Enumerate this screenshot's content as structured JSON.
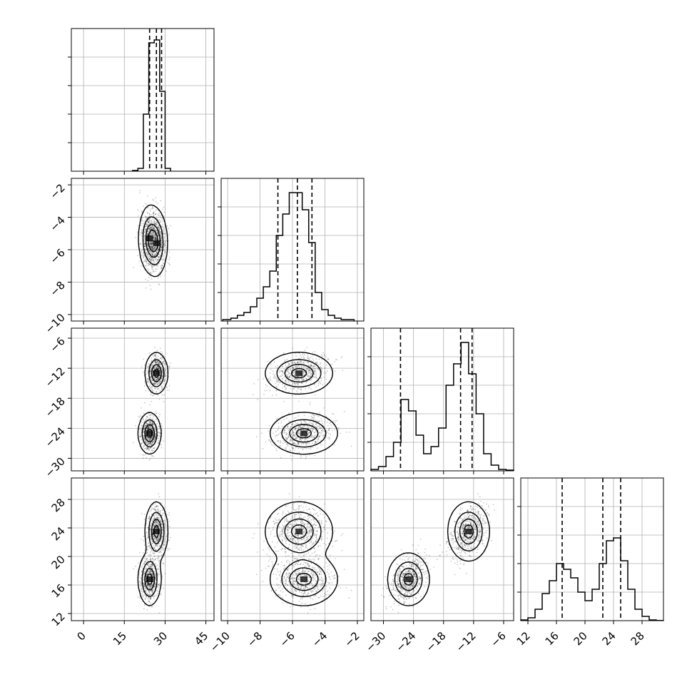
{
  "chart_data": {
    "type": "corner",
    "params": [
      {
        "ticks": [
          0,
          15,
          30,
          45
        ],
        "range": [
          -4.5,
          48
        ],
        "quantiles": [
          24.3,
          26.8,
          28.7
        ]
      },
      {
        "ticks": [
          -10,
          -8,
          -6,
          -4,
          -2
        ],
        "range": [
          -10.4,
          -1.6
        ],
        "quantiles": [
          -6.9,
          -5.7,
          -4.8
        ]
      },
      {
        "ticks": [
          -30,
          -24,
          -18,
          -12,
          -6
        ],
        "range": [
          -32.5,
          -4
        ],
        "quantiles": [
          -26.6,
          -14.6,
          -12.3
        ]
      },
      {
        "ticks": [
          12,
          16,
          20,
          24,
          28
        ],
        "range": [
          11,
          31
        ],
        "quantiles": [
          16.8,
          22.5,
          25.0
        ]
      }
    ],
    "diag_ytick_fractions": [
      0.2,
      0.4,
      0.6,
      0.8
    ],
    "histograms": [
      {
        "edges": [
          18,
          20,
          22,
          24,
          26,
          28,
          30,
          32
        ],
        "densities": [
          0.005,
          0.02,
          0.4,
          0.9,
          0.92,
          0.56,
          0.02
        ]
      },
      {
        "edges": [
          -10.3,
          -9.8,
          -9.4,
          -9.0,
          -8.6,
          -8.2,
          -7.8,
          -7.4,
          -7.0,
          -6.6,
          -6.2,
          -5.8,
          -5.4,
          -5.0,
          -4.6,
          -4.2,
          -3.8,
          -3.4,
          -3.0,
          -2.6,
          -2.2
        ],
        "densities": [
          0.01,
          0.02,
          0.04,
          0.06,
          0.1,
          0.16,
          0.24,
          0.35,
          0.6,
          0.75,
          0.9,
          0.9,
          0.78,
          0.55,
          0.2,
          0.08,
          0.04,
          0.02,
          0.01,
          0.01
        ]
      },
      {
        "edges": [
          -32.5,
          -31,
          -29.5,
          -28,
          -26.5,
          -25,
          -23.5,
          -22,
          -20.5,
          -19,
          -17.5,
          -16,
          -14.5,
          -13,
          -11.5,
          -10,
          -8.5,
          -7,
          -5.5,
          -4
        ],
        "densities": [
          0.01,
          0.03,
          0.1,
          0.2,
          0.5,
          0.42,
          0.25,
          0.12,
          0.17,
          0.3,
          0.6,
          0.75,
          0.9,
          0.68,
          0.4,
          0.12,
          0.04,
          0.01,
          0.005
        ]
      },
      {
        "edges": [
          11,
          12,
          13,
          14,
          15,
          16,
          17,
          18,
          19,
          20,
          21,
          22,
          23,
          24,
          25,
          26,
          27,
          28,
          29,
          30,
          31
        ],
        "densities": [
          0.005,
          0.02,
          0.08,
          0.19,
          0.28,
          0.4,
          0.36,
          0.3,
          0.2,
          0.14,
          0.22,
          0.4,
          0.56,
          0.58,
          0.42,
          0.22,
          0.08,
          0.03,
          0.005,
          0.001
        ]
      }
    ],
    "samples_per_component": [
      650,
      650
    ],
    "mixture_components": [
      {
        "mean": [
          26.8,
          -5.6,
          -13,
          23.5
        ],
        "sd": [
          1.8,
          0.9,
          1.8,
          1.8
        ]
      },
      {
        "mean": [
          24.3,
          -5.3,
          -25,
          16.8
        ],
        "sd": [
          1.8,
          0.9,
          1.8,
          1.6
        ]
      }
    ],
    "contour_levels": [
      0.95,
      0.7,
      0.4,
      0.15
    ],
    "grid_lines": true,
    "colors": {
      "line": "#000000",
      "grid": "#b0b0b0",
      "points": "#000000",
      "fill": "#000000"
    }
  }
}
